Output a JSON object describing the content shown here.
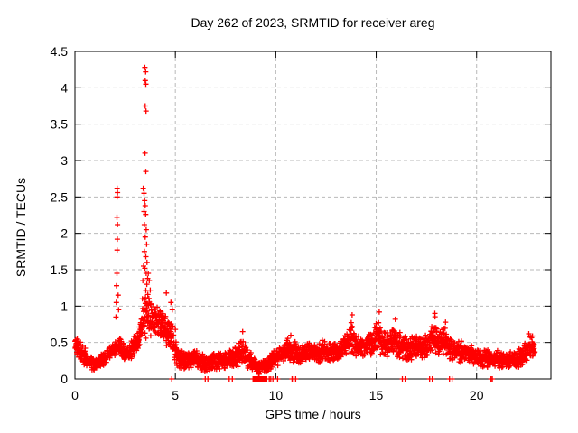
{
  "chart_data": {
    "type": "scatter",
    "title": "Day 262 of 2023, SRMTID for receiver areg",
    "xlabel": "GPS time / hours",
    "ylabel": "SRMTID / TECUs",
    "xlim": [
      0,
      23.7
    ],
    "ylim": [
      0,
      4.5
    ],
    "xticks": [
      0,
      5,
      10,
      15,
      20
    ],
    "xtick_labels": [
      "0",
      "5",
      "10",
      "15",
      "20"
    ],
    "yticks": [
      0,
      0.5,
      1,
      1.5,
      2,
      2.5,
      3,
      3.5,
      4,
      4.5
    ],
    "ytick_labels": [
      "0",
      "0.5",
      "1",
      "1.5",
      "2",
      "2.5",
      "3",
      "3.5",
      "4",
      "4.5"
    ],
    "grid": true,
    "legend": "none",
    "marker": "plus",
    "marker_color": "#ff0000",
    "grid_color": "#b9b9b9",
    "border_color": "#000000",
    "points_per_hour": 110,
    "band_envelope": [
      [
        0.0,
        0.38,
        0.62
      ],
      [
        0.15,
        0.3,
        0.55
      ],
      [
        0.35,
        0.22,
        0.5
      ],
      [
        0.55,
        0.15,
        0.42
      ],
      [
        0.75,
        0.12,
        0.35
      ],
      [
        0.95,
        0.1,
        0.3
      ],
      [
        1.15,
        0.12,
        0.32
      ],
      [
        1.35,
        0.15,
        0.38
      ],
      [
        1.55,
        0.18,
        0.42
      ],
      [
        1.75,
        0.25,
        0.48
      ],
      [
        1.95,
        0.3,
        0.55
      ],
      [
        2.1,
        0.32,
        0.62
      ],
      [
        2.3,
        0.28,
        0.55
      ],
      [
        2.5,
        0.22,
        0.48
      ],
      [
        2.7,
        0.25,
        0.5
      ],
      [
        2.9,
        0.3,
        0.58
      ],
      [
        3.1,
        0.35,
        0.68
      ],
      [
        3.3,
        0.45,
        0.9
      ],
      [
        3.45,
        0.5,
        1.25
      ],
      [
        3.6,
        0.55,
        1.3
      ],
      [
        3.75,
        0.55,
        1.1
      ],
      [
        3.95,
        0.6,
        1.05
      ],
      [
        4.15,
        0.55,
        1.0
      ],
      [
        4.4,
        0.5,
        0.95
      ],
      [
        4.65,
        0.4,
        0.9
      ],
      [
        4.9,
        0.25,
        0.75
      ],
      [
        5.1,
        0.15,
        0.5
      ],
      [
        5.35,
        0.1,
        0.38
      ],
      [
        5.6,
        0.12,
        0.4
      ],
      [
        5.9,
        0.15,
        0.45
      ],
      [
        6.2,
        0.12,
        0.42
      ],
      [
        6.5,
        0.08,
        0.35
      ],
      [
        6.8,
        0.1,
        0.38
      ],
      [
        7.1,
        0.12,
        0.4
      ],
      [
        7.4,
        0.1,
        0.38
      ],
      [
        7.7,
        0.12,
        0.42
      ],
      [
        8.0,
        0.15,
        0.45
      ],
      [
        8.3,
        0.18,
        0.6
      ],
      [
        8.55,
        0.15,
        0.5
      ],
      [
        8.8,
        0.08,
        0.35
      ],
      [
        9.1,
        0.04,
        0.25
      ],
      [
        9.4,
        0.05,
        0.28
      ],
      [
        9.7,
        0.1,
        0.35
      ],
      [
        10.0,
        0.15,
        0.42
      ],
      [
        10.3,
        0.2,
        0.5
      ],
      [
        10.6,
        0.22,
        0.58
      ],
      [
        10.9,
        0.2,
        0.55
      ],
      [
        11.2,
        0.18,
        0.48
      ],
      [
        11.5,
        0.2,
        0.5
      ],
      [
        11.8,
        0.22,
        0.52
      ],
      [
        12.1,
        0.2,
        0.5
      ],
      [
        12.4,
        0.22,
        0.55
      ],
      [
        12.7,
        0.2,
        0.52
      ],
      [
        13.0,
        0.22,
        0.52
      ],
      [
        13.3,
        0.25,
        0.58
      ],
      [
        13.6,
        0.28,
        0.65
      ],
      [
        13.8,
        0.3,
        0.88
      ],
      [
        14.0,
        0.28,
        0.62
      ],
      [
        14.3,
        0.25,
        0.6
      ],
      [
        14.6,
        0.28,
        0.65
      ],
      [
        14.9,
        0.3,
        0.72
      ],
      [
        15.1,
        0.32,
        0.92
      ],
      [
        15.3,
        0.3,
        0.7
      ],
      [
        15.6,
        0.28,
        0.65
      ],
      [
        15.9,
        0.28,
        0.8
      ],
      [
        16.1,
        0.25,
        0.72
      ],
      [
        16.4,
        0.22,
        0.6
      ],
      [
        16.7,
        0.25,
        0.65
      ],
      [
        17.0,
        0.25,
        0.62
      ],
      [
        17.3,
        0.25,
        0.6
      ],
      [
        17.6,
        0.28,
        0.65
      ],
      [
        17.9,
        0.3,
        0.9
      ],
      [
        18.1,
        0.28,
        0.7
      ],
      [
        18.4,
        0.28,
        0.75
      ],
      [
        18.7,
        0.25,
        0.62
      ],
      [
        19.0,
        0.22,
        0.55
      ],
      [
        19.3,
        0.2,
        0.52
      ],
      [
        19.6,
        0.2,
        0.5
      ],
      [
        19.9,
        0.18,
        0.46
      ],
      [
        20.2,
        0.16,
        0.44
      ],
      [
        20.5,
        0.15,
        0.42
      ],
      [
        20.8,
        0.15,
        0.4
      ],
      [
        21.1,
        0.14,
        0.4
      ],
      [
        21.4,
        0.13,
        0.38
      ],
      [
        21.7,
        0.13,
        0.38
      ],
      [
        22.0,
        0.14,
        0.4
      ],
      [
        22.3,
        0.16,
        0.45
      ],
      [
        22.55,
        0.22,
        0.58
      ],
      [
        22.75,
        0.28,
        0.62
      ],
      [
        22.9,
        0.3,
        0.55
      ]
    ],
    "outlier_points": [
      [
        2.04,
        0.85
      ],
      [
        2.06,
        1.05
      ],
      [
        2.07,
        1.28
      ],
      [
        2.09,
        1.45
      ],
      [
        2.1,
        1.77
      ],
      [
        2.11,
        1.92
      ],
      [
        2.12,
        2.12
      ],
      [
        2.09,
        2.22
      ],
      [
        2.1,
        2.5
      ],
      [
        2.12,
        2.56
      ],
      [
        2.1,
        2.62
      ],
      [
        2.15,
        1.15
      ],
      [
        2.17,
        0.95
      ],
      [
        3.48,
        4.28
      ],
      [
        3.52,
        4.22
      ],
      [
        3.5,
        4.1
      ],
      [
        3.53,
        4.05
      ],
      [
        3.5,
        3.75
      ],
      [
        3.54,
        3.68
      ],
      [
        3.49,
        3.1
      ],
      [
        3.53,
        2.85
      ],
      [
        3.4,
        2.62
      ],
      [
        3.44,
        2.55
      ],
      [
        3.47,
        2.45
      ],
      [
        3.5,
        2.38
      ],
      [
        3.44,
        2.3
      ],
      [
        3.52,
        2.26
      ],
      [
        3.46,
        2.12
      ],
      [
        3.55,
        2.05
      ],
      [
        3.5,
        1.95
      ],
      [
        3.57,
        1.85
      ],
      [
        3.46,
        1.75
      ],
      [
        3.53,
        1.68
      ],
      [
        3.59,
        1.6
      ],
      [
        3.48,
        1.52
      ],
      [
        3.55,
        1.45
      ],
      [
        3.62,
        1.38
      ],
      [
        3.58,
        1.3
      ],
      [
        3.65,
        1.45
      ],
      [
        3.7,
        1.35
      ],
      [
        3.75,
        1.22
      ],
      [
        3.42,
        1.55
      ],
      [
        3.38,
        1.35
      ],
      [
        3.36,
        1.1
      ],
      [
        4.55,
        1.18
      ],
      [
        4.78,
        1.05
      ],
      [
        4.85,
        0.95
      ],
      [
        5.0,
        0.68
      ],
      [
        8.35,
        0.65
      ],
      [
        10.75,
        0.6
      ],
      [
        13.8,
        0.88
      ],
      [
        15.15,
        0.92
      ],
      [
        15.95,
        0.82
      ],
      [
        17.92,
        0.9
      ],
      [
        18.45,
        0.78
      ],
      [
        22.6,
        0.62
      ]
    ],
    "zero_points": [
      4.82,
      6.49,
      6.62,
      7.68,
      7.84,
      8.87,
      8.9,
      8.93,
      8.96,
      8.99,
      9.02,
      9.05,
      9.08,
      9.11,
      9.14,
      9.17,
      9.2,
      9.23,
      9.26,
      9.29,
      9.32,
      9.35,
      9.38,
      9.41,
      9.44,
      9.47,
      9.5,
      9.55,
      9.68,
      9.75,
      9.86,
      10.09,
      10.81,
      10.9,
      10.99,
      16.3,
      16.44,
      17.66,
      17.79,
      18.65,
      18.78,
      20.72,
      20.78
    ]
  }
}
